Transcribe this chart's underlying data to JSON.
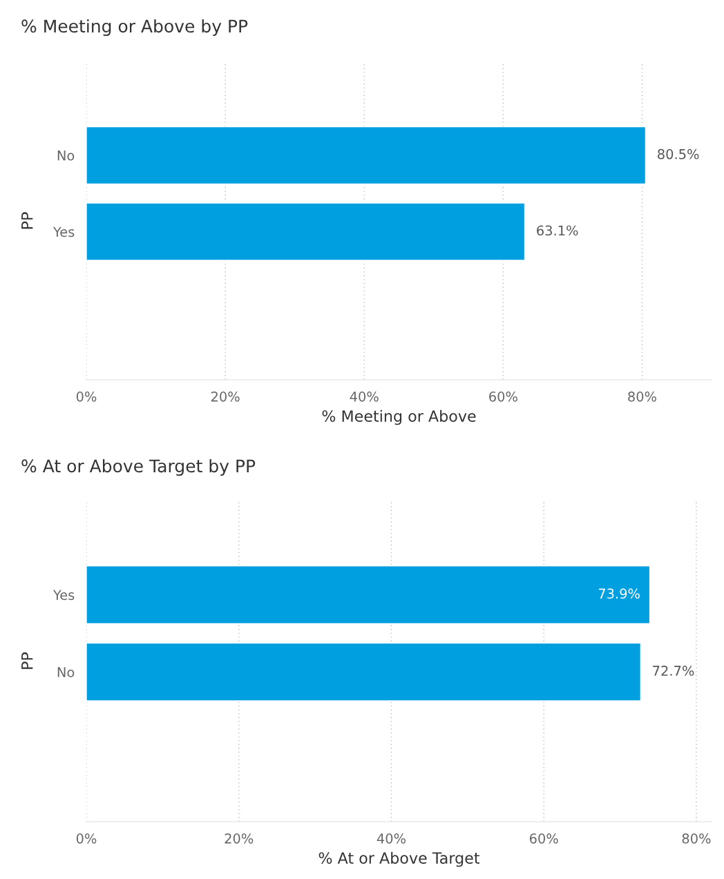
{
  "chart_data": [
    {
      "type": "bar",
      "orientation": "horizontal",
      "title": "% Meeting or Above by PP",
      "xlabel": "% Meeting or Above",
      "ylabel": "PP",
      "categories": [
        "No",
        "Yes"
      ],
      "values": [
        80.5,
        63.1
      ],
      "value_labels": [
        "80.5%",
        "63.1%"
      ],
      "color": "#009fdf",
      "xlim": [
        0,
        90
      ],
      "xticks": [
        {
          "value": 0,
          "label": "0%"
        },
        {
          "value": 20,
          "label": "20%"
        },
        {
          "value": 40,
          "label": "40%"
        },
        {
          "value": 60,
          "label": "60%"
        },
        {
          "value": 80,
          "label": "80%"
        }
      ],
      "grid": "x",
      "legend": false
    },
    {
      "type": "bar",
      "orientation": "horizontal",
      "title": "% At or Above Target by PP",
      "xlabel": "% At or Above Target",
      "ylabel": "PP",
      "categories": [
        "Yes",
        "No"
      ],
      "values": [
        73.9,
        72.7
      ],
      "value_labels": [
        "73.9%",
        "72.7%"
      ],
      "color": "#009fdf",
      "xlim": [
        0,
        82
      ],
      "xticks": [
        {
          "value": 0,
          "label": "0%"
        },
        {
          "value": 20,
          "label": "20%"
        },
        {
          "value": 40,
          "label": "40%"
        },
        {
          "value": 60,
          "label": "60%"
        },
        {
          "value": 80,
          "label": "80%"
        }
      ],
      "grid": "x",
      "legend": false
    }
  ]
}
